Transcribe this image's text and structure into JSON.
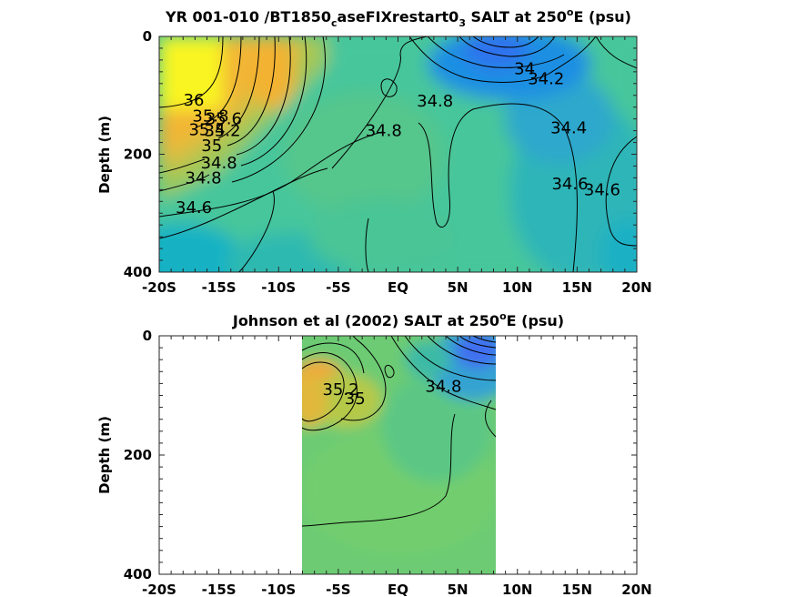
{
  "chart_data": [
    {
      "type": "heatmap",
      "title_parts": [
        "YR 001-010 /BT1850",
        "c",
        "aseFIXrestart0",
        "3",
        " SALT at 250",
        "o",
        "E (psu)"
      ],
      "xlabel": "",
      "ylabel": "Depth (m)",
      "xlim": [
        -20,
        20
      ],
      "ylim": [
        0,
        400
      ],
      "y_reversed": true,
      "x_ticks": [
        -20,
        -15,
        -10,
        -5,
        0,
        5,
        10,
        15,
        20
      ],
      "x_tick_labels": [
        "-20S",
        "-15S",
        "-10S",
        "-5S",
        "EQ",
        "5N",
        "10N",
        "15N",
        "20N"
      ],
      "y_ticks": [
        0,
        200,
        400
      ],
      "y_tick_labels": [
        "0",
        "200",
        "400"
      ],
      "data_extent_x": [
        -20,
        20
      ],
      "contour_labels": [
        {
          "text": "36",
          "x": -17.1,
          "y": 108
        },
        {
          "text": "35.8",
          "x": -15.7,
          "y": 135
        },
        {
          "text": "35.6",
          "x": -14.6,
          "y": 140
        },
        {
          "text": "35.4",
          "x": -16.0,
          "y": 158
        },
        {
          "text": "35.2",
          "x": -14.7,
          "y": 160
        },
        {
          "text": "35",
          "x": -15.6,
          "y": 185
        },
        {
          "text": "34.8",
          "x": -15.0,
          "y": 215
        },
        {
          "text": "34.8",
          "x": -16.3,
          "y": 240
        },
        {
          "text": "34.6",
          "x": -17.1,
          "y": 290
        },
        {
          "text": "34.8",
          "x": -1.2,
          "y": 160
        },
        {
          "text": "34.8",
          "x": 3.1,
          "y": 110
        },
        {
          "text": "34",
          "x": 10.6,
          "y": 55
        },
        {
          "text": "34.2",
          "x": 12.4,
          "y": 72
        },
        {
          "text": "34.4",
          "x": 14.3,
          "y": 155
        },
        {
          "text": "34.6",
          "x": 14.4,
          "y": 250
        },
        {
          "text": "34.6",
          "x": 17.1,
          "y": 260
        }
      ]
    },
    {
      "type": "heatmap",
      "title_parts": [
        "Johnson et al (2002) SALT at 250",
        "o",
        "E (psu)"
      ],
      "xlabel": "",
      "ylabel": "Depth (m)",
      "xlim": [
        -20,
        20
      ],
      "ylim": [
        0,
        400
      ],
      "y_reversed": true,
      "x_ticks": [
        -20,
        -15,
        -10,
        -5,
        0,
        5,
        10,
        15,
        20
      ],
      "x_tick_labels": [
        "-20S",
        "-15S",
        "-10S",
        "-5S",
        "EQ",
        "5N",
        "10N",
        "15N",
        "20N"
      ],
      "y_ticks": [
        0,
        200,
        400
      ],
      "y_tick_labels": [
        "0",
        "200",
        "400"
      ],
      "data_extent_x": [
        -8,
        8.3
      ],
      "contour_labels": [
        {
          "text": "35.2",
          "x": -4.8,
          "y": 90
        },
        {
          "text": "35",
          "x": -3.6,
          "y": 105
        },
        {
          "text": "34.8",
          "x": 3.8,
          "y": 85
        }
      ]
    }
  ]
}
